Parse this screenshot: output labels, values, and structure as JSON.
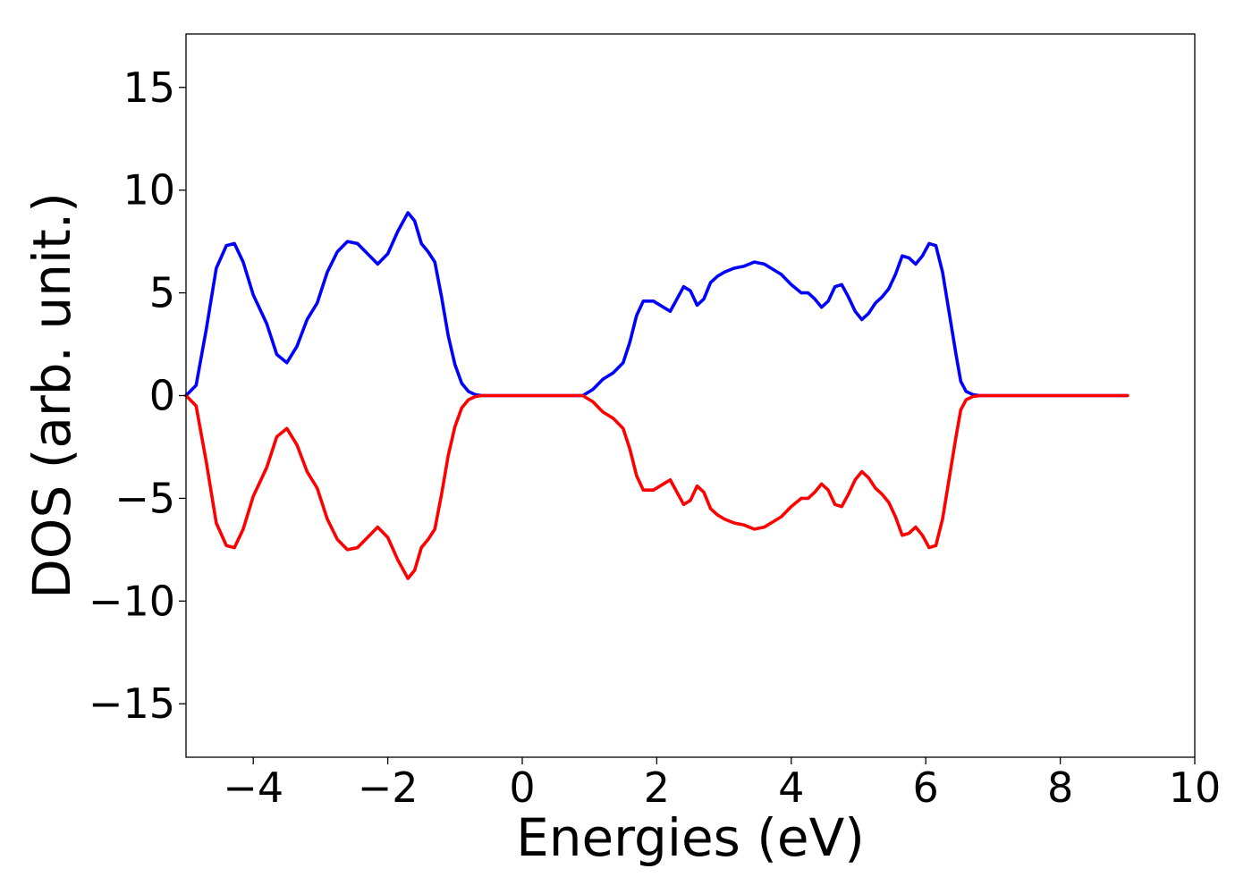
{
  "chart_data": {
    "type": "line",
    "title": "",
    "xlabel": "Energies (eV)",
    "ylabel": "DOS (arb. unit.)",
    "xlim": [
      -5,
      10
    ],
    "ylim": [
      -17.6,
      17.6
    ],
    "xticks": [
      -4,
      -2,
      0,
      2,
      4,
      6,
      8,
      10
    ],
    "xtick_labels": [
      "−4",
      "−2",
      "0",
      "2",
      "4",
      "6",
      "8",
      "10"
    ],
    "yticks": [
      15,
      10,
      5,
      0,
      -5,
      -10,
      -15
    ],
    "ytick_labels": [
      "15",
      "10",
      "5",
      "0",
      "−5",
      "−10",
      "−15"
    ],
    "grid": false,
    "legend": "none",
    "series": [
      {
        "color": "#0000ff",
        "x": [
          -5.0,
          -4.85,
          -4.7,
          -4.55,
          -4.4,
          -4.28,
          -4.15,
          -4.0,
          -3.8,
          -3.65,
          -3.5,
          -3.35,
          -3.2,
          -3.05,
          -2.9,
          -2.75,
          -2.6,
          -2.45,
          -2.3,
          -2.15,
          -2.0,
          -1.85,
          -1.7,
          -1.6,
          -1.5,
          -1.4,
          -1.3,
          -1.2,
          -1.1,
          -1.0,
          -0.9,
          -0.8,
          -0.7,
          -0.6,
          -0.5,
          0.0,
          0.5,
          0.9,
          1.05,
          1.2,
          1.35,
          1.5,
          1.6,
          1.7,
          1.8,
          1.95,
          2.1,
          2.2,
          2.3,
          2.4,
          2.5,
          2.6,
          2.7,
          2.8,
          2.9,
          3.0,
          3.15,
          3.3,
          3.45,
          3.6,
          3.7,
          3.85,
          4.0,
          4.15,
          4.25,
          4.35,
          4.45,
          4.55,
          4.65,
          4.75,
          4.85,
          4.95,
          5.05,
          5.15,
          5.25,
          5.35,
          5.45,
          5.55,
          5.65,
          5.75,
          5.85,
          5.95,
          6.05,
          6.15,
          6.25,
          6.35,
          6.45,
          6.52,
          6.6,
          6.7,
          6.8,
          6.9,
          7.0,
          7.1,
          7.2,
          7.5,
          8.0,
          8.5,
          9.0
        ],
        "values": [
          0.0,
          0.5,
          3.2,
          6.2,
          7.3,
          7.4,
          6.5,
          4.9,
          3.5,
          2.0,
          1.6,
          2.4,
          3.7,
          4.5,
          6.0,
          7.0,
          7.5,
          7.4,
          6.9,
          6.4,
          6.9,
          8.0,
          8.9,
          8.5,
          7.4,
          7.0,
          6.5,
          4.8,
          2.9,
          1.5,
          0.6,
          0.2,
          0.05,
          0.0,
          0.0,
          0.0,
          0.0,
          0.0,
          0.3,
          0.8,
          1.1,
          1.6,
          2.6,
          3.9,
          4.6,
          4.6,
          4.3,
          4.1,
          4.7,
          5.3,
          5.1,
          4.4,
          4.7,
          5.5,
          5.8,
          6.0,
          6.2,
          6.3,
          6.5,
          6.4,
          6.2,
          5.9,
          5.4,
          5.0,
          5.0,
          4.7,
          4.3,
          4.6,
          5.3,
          5.4,
          4.8,
          4.1,
          3.7,
          4.0,
          4.5,
          4.8,
          5.2,
          5.9,
          6.8,
          6.7,
          6.4,
          6.8,
          7.4,
          7.3,
          6.0,
          4.0,
          2.0,
          0.7,
          0.2,
          0.05,
          0.0,
          0.0,
          0.0,
          0.0,
          0.0,
          0.0,
          0.0,
          0.0,
          0.0
        ]
      },
      {
        "color": "#ff0000",
        "x": [
          -5.0,
          -4.85,
          -4.7,
          -4.55,
          -4.4,
          -4.28,
          -4.15,
          -4.0,
          -3.8,
          -3.65,
          -3.5,
          -3.35,
          -3.2,
          -3.05,
          -2.9,
          -2.75,
          -2.6,
          -2.45,
          -2.3,
          -2.15,
          -2.0,
          -1.85,
          -1.7,
          -1.6,
          -1.5,
          -1.4,
          -1.3,
          -1.2,
          -1.1,
          -1.0,
          -0.9,
          -0.8,
          -0.7,
          -0.6,
          -0.5,
          0.0,
          0.5,
          0.9,
          1.05,
          1.2,
          1.35,
          1.5,
          1.6,
          1.7,
          1.8,
          1.95,
          2.1,
          2.2,
          2.3,
          2.4,
          2.5,
          2.6,
          2.7,
          2.8,
          2.9,
          3.0,
          3.15,
          3.3,
          3.45,
          3.6,
          3.7,
          3.85,
          4.0,
          4.15,
          4.25,
          4.35,
          4.45,
          4.55,
          4.65,
          4.75,
          4.85,
          4.95,
          5.05,
          5.15,
          5.25,
          5.35,
          5.45,
          5.55,
          5.65,
          5.75,
          5.85,
          5.95,
          6.05,
          6.15,
          6.25,
          6.35,
          6.45,
          6.52,
          6.6,
          6.7,
          6.8,
          6.9,
          7.0,
          7.1,
          7.2,
          7.5,
          8.0,
          8.5,
          9.0
        ],
        "values": [
          0.0,
          -0.5,
          -3.2,
          -6.2,
          -7.3,
          -7.4,
          -6.5,
          -4.9,
          -3.5,
          -2.0,
          -1.6,
          -2.4,
          -3.7,
          -4.5,
          -6.0,
          -7.0,
          -7.5,
          -7.4,
          -6.9,
          -6.4,
          -6.9,
          -8.0,
          -8.9,
          -8.5,
          -7.4,
          -7.0,
          -6.5,
          -4.8,
          -2.9,
          -1.5,
          -0.6,
          -0.2,
          -0.05,
          0.0,
          0.0,
          0.0,
          0.0,
          0.0,
          -0.3,
          -0.8,
          -1.1,
          -1.6,
          -2.6,
          -3.9,
          -4.6,
          -4.6,
          -4.3,
          -4.1,
          -4.7,
          -5.3,
          -5.1,
          -4.4,
          -4.7,
          -5.5,
          -5.8,
          -6.0,
          -6.2,
          -6.3,
          -6.5,
          -6.4,
          -6.2,
          -5.9,
          -5.4,
          -5.0,
          -5.0,
          -4.7,
          -4.3,
          -4.6,
          -5.3,
          -5.4,
          -4.8,
          -4.1,
          -3.7,
          -4.0,
          -4.5,
          -4.8,
          -5.2,
          -5.9,
          -6.8,
          -6.7,
          -6.4,
          -6.8,
          -7.4,
          -7.3,
          -6.0,
          -4.0,
          -2.0,
          -0.7,
          -0.2,
          -0.05,
          0.0,
          0.0,
          0.0,
          0.0,
          0.0,
          0.0,
          0.0,
          0.0,
          0.0
        ]
      }
    ]
  }
}
